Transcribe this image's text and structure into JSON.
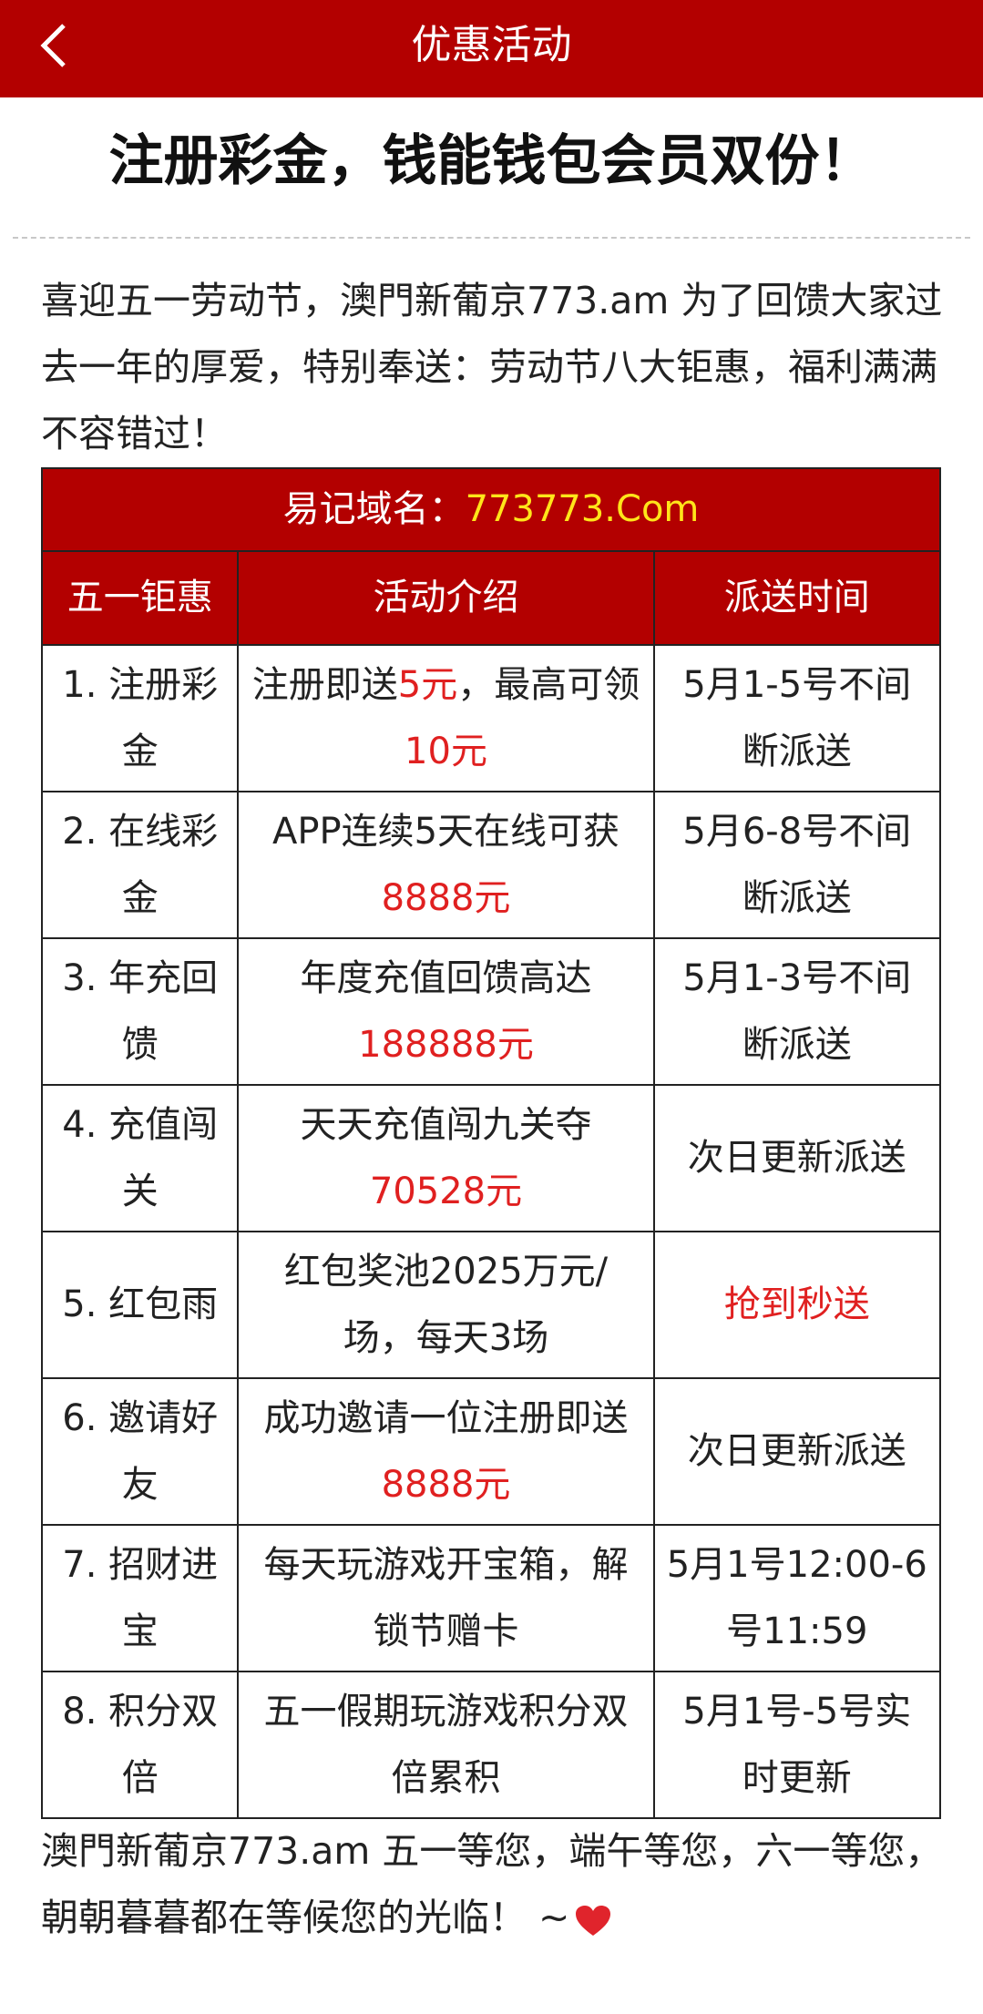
{
  "header": {
    "title": "优惠活动"
  },
  "headline": "注册彩金，钱能钱包会员双份！",
  "intro": "喜迎五一劳动节，澳門新葡京773.am 为了回馈大家过去一年的厚爱，特别奉送：劳动节八大钜惠，福利满满不容错过！",
  "table": {
    "caption": [
      {
        "text": "易记域名："
      },
      {
        "text": "773773.Com",
        "color": "#ffe51a"
      }
    ],
    "headers": [
      "五一钜惠",
      "活动介绍",
      "派送时间"
    ],
    "rows": [
      [
        [
          {
            "text": "1. 注册彩金"
          }
        ],
        [
          {
            "text": "注册即送"
          },
          {
            "text": "5元",
            "color": "#e02020"
          },
          {
            "text": "，最高可领"
          },
          {
            "text": "10元",
            "color": "#e02020"
          }
        ],
        [
          {
            "text": "5月1-5号不间断派送"
          }
        ]
      ],
      [
        [
          {
            "text": "2. 在线彩金"
          }
        ],
        [
          {
            "text": "APP连续5天在线可获"
          },
          {
            "text": "8888元",
            "color": "#e02020"
          }
        ],
        [
          {
            "text": "5月6-8号不间断派送"
          }
        ]
      ],
      [
        [
          {
            "text": "3. 年充回馈"
          }
        ],
        [
          {
            "text": "年度充值回馈高达"
          },
          {
            "text": "188888元",
            "color": "#e02020"
          }
        ],
        [
          {
            "text": "5月1-3号不间断派送"
          }
        ]
      ],
      [
        [
          {
            "text": "4. 充值闯关"
          }
        ],
        [
          {
            "text": "天天充值闯九关夺"
          },
          {
            "text": "70528元",
            "color": "#e02020"
          }
        ],
        [
          {
            "text": "次日更新派送"
          }
        ]
      ],
      [
        [
          {
            "text": "5. 红包雨"
          }
        ],
        [
          {
            "text": "红包奖池2025万元/场，每天3场"
          }
        ],
        [
          {
            "text": "抢到秒送",
            "color": "#e02020"
          }
        ]
      ],
      [
        [
          {
            "text": "6. 邀请好友"
          }
        ],
        [
          {
            "text": "成功邀请一位注册即送"
          },
          {
            "text": "8888元",
            "color": "#e02020"
          }
        ],
        [
          {
            "text": "次日更新派送"
          }
        ]
      ],
      [
        [
          {
            "text": "7. 招财进宝"
          }
        ],
        [
          {
            "text": "每天玩游戏开宝箱，解锁节赠卡"
          }
        ],
        [
          {
            "text": "5月1号12:00-6号11:59"
          }
        ]
      ],
      [
        [
          {
            "text": "8. 积分双倍"
          }
        ],
        [
          {
            "text": "五一假期玩游戏积分双倍累积"
          }
        ],
        [
          {
            "text": "5月1号-5号实时更新"
          }
        ]
      ]
    ]
  },
  "footer": "澳門新葡京773.am 五一等您，端午等您，六一等您，朝朝暮暮都在等候您的光临！ ~"
}
